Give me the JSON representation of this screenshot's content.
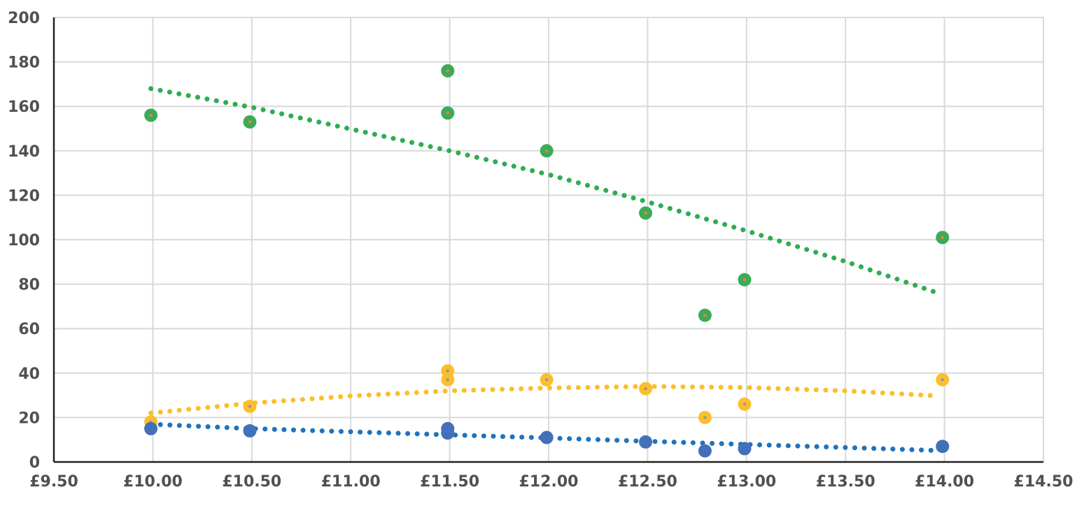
{
  "chart_data": {
    "type": "scatter",
    "title": "",
    "xlabel": "",
    "ylabel": "",
    "xlim": [
      9.5,
      14.5
    ],
    "ylim": [
      0,
      200
    ],
    "x_ticks": [
      "£9.50",
      "£10.00",
      "£10.50",
      "£11.00",
      "£11.50",
      "£12.00",
      "£12.50",
      "£13.00",
      "£13.50",
      "£14.00",
      "£14.50"
    ],
    "y_ticks": [
      "0",
      "20",
      "40",
      "60",
      "80",
      "100",
      "120",
      "140",
      "160",
      "180",
      "200"
    ],
    "grid": true,
    "legend": "none",
    "series": [
      {
        "color": "#3cab58",
        "marker_center_color": "#e8823a",
        "trendline_color": "#2ead51",
        "points": [
          [
            9.99,
            156
          ],
          [
            10.49,
            153
          ],
          [
            11.49,
            176
          ],
          [
            11.49,
            157
          ],
          [
            11.99,
            140
          ],
          [
            12.49,
            112
          ],
          [
            12.79,
            66
          ],
          [
            12.99,
            82
          ],
          [
            13.99,
            101
          ]
        ],
        "trendline": [
          [
            9.99,
            168
          ],
          [
            10.5,
            159.6
          ],
          [
            11.5,
            140
          ],
          [
            12.0,
            129.3
          ],
          [
            12.5,
            117
          ],
          [
            13.0,
            104
          ],
          [
            13.5,
            90.2
          ],
          [
            13.95,
            76.5
          ]
        ]
      },
      {
        "color": "#fbbf2c",
        "marker_center_color": "#8d9aa5",
        "trendline_color": "#fbbf2c",
        "points": [
          [
            9.99,
            18
          ],
          [
            10.49,
            25
          ],
          [
            11.49,
            41
          ],
          [
            11.49,
            37
          ],
          [
            11.99,
            37
          ],
          [
            12.49,
            33
          ],
          [
            12.79,
            20
          ],
          [
            12.99,
            26
          ],
          [
            13.99,
            37
          ]
        ],
        "trendline": [
          [
            9.99,
            22
          ],
          [
            10.5,
            26.5
          ],
          [
            11.0,
            29.7
          ],
          [
            11.5,
            32
          ],
          [
            12.0,
            33.3
          ],
          [
            12.5,
            34
          ],
          [
            13.0,
            33.5
          ],
          [
            13.5,
            32
          ],
          [
            13.95,
            29.8
          ]
        ]
      },
      {
        "color": "#4270b9",
        "marker_center_color": "#4270b9",
        "trendline_color": "#1e73be",
        "points": [
          [
            9.99,
            15
          ],
          [
            10.49,
            14
          ],
          [
            11.49,
            15
          ],
          [
            11.49,
            13
          ],
          [
            11.99,
            11
          ],
          [
            12.49,
            9
          ],
          [
            12.79,
            5
          ],
          [
            12.99,
            6
          ],
          [
            13.99,
            7
          ]
        ],
        "trendline": [
          [
            9.99,
            17
          ],
          [
            10.5,
            15
          ],
          [
            11.0,
            13.6
          ],
          [
            11.5,
            12.2
          ],
          [
            12.0,
            10.8
          ],
          [
            12.5,
            9.3
          ],
          [
            13.0,
            7.9
          ],
          [
            13.5,
            6.5
          ],
          [
            13.95,
            5.2
          ]
        ]
      }
    ]
  }
}
